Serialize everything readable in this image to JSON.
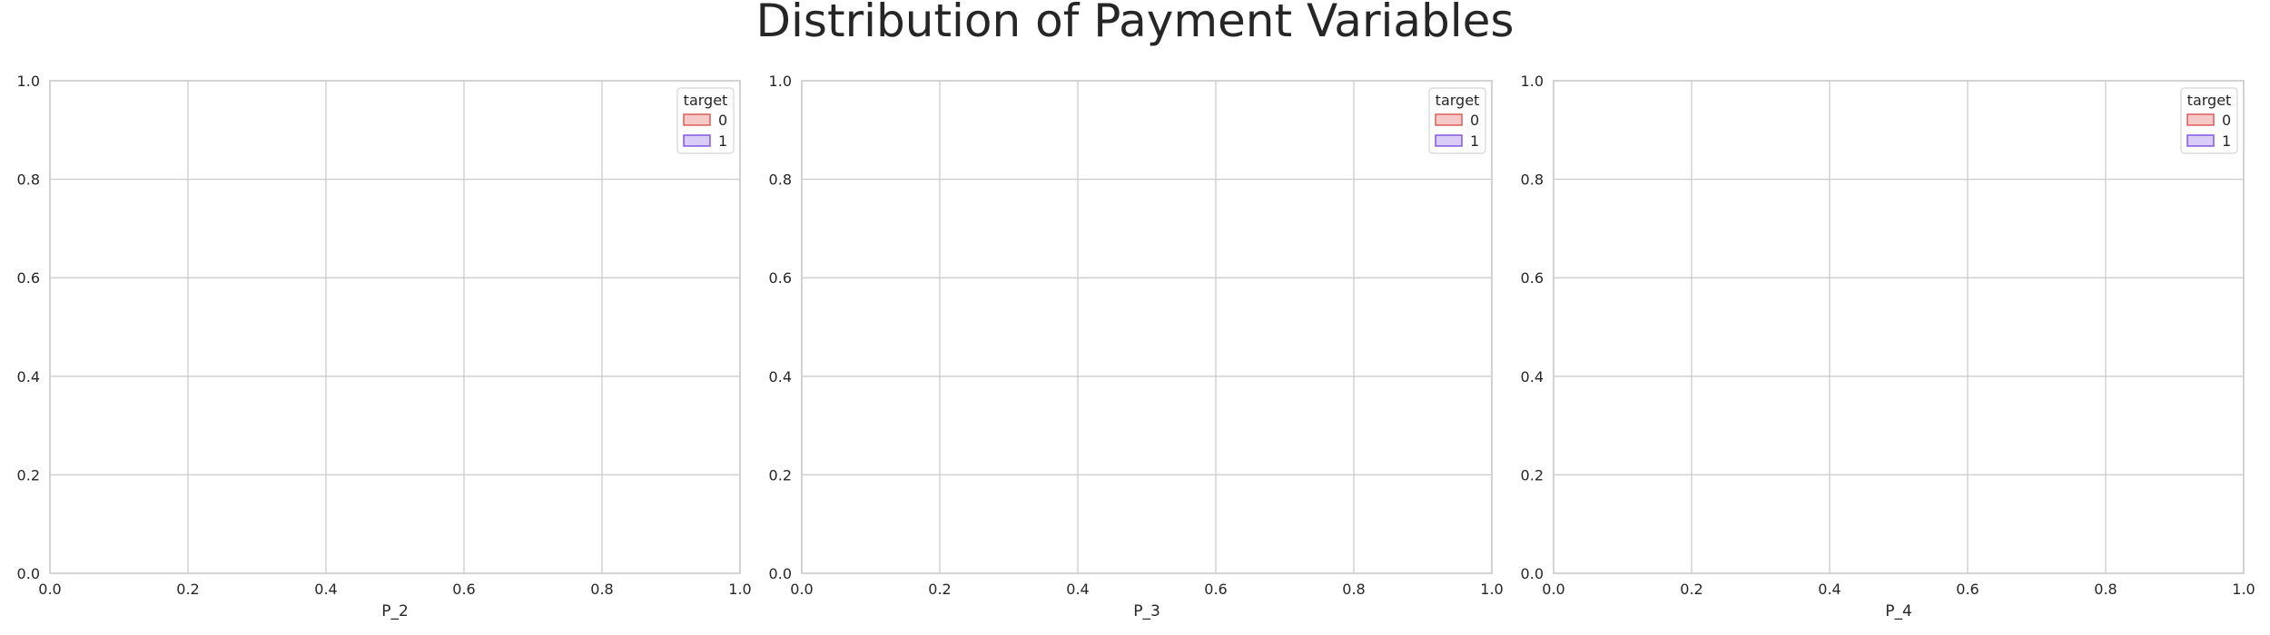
{
  "figure": {
    "title": "Distribution of Payment Variables"
  },
  "colors": {
    "grid": "#cccccc",
    "spine": "#cccccc",
    "class_0_fill": "#f6c9c9",
    "class_0_edge": "#d9534f",
    "class_1_fill": "#d9ccf6",
    "class_1_edge": "#7b4fe0"
  },
  "chart_data": [
    {
      "type": "area",
      "title": "",
      "xlabel": "P_2",
      "ylabel": "",
      "xlim": [
        0.0,
        1.0
      ],
      "ylim": [
        0.0,
        1.0
      ],
      "xticks": [
        "0.0",
        "0.2",
        "0.4",
        "0.6",
        "0.8",
        "1.0"
      ],
      "yticks": [
        "0.0",
        "0.2",
        "0.4",
        "0.6",
        "0.8",
        "1.0"
      ],
      "grid": true,
      "legend": {
        "title": "target",
        "placement": "top-right",
        "entries": [
          "0",
          "1"
        ]
      },
      "series": []
    },
    {
      "type": "area",
      "title": "",
      "xlabel": "P_3",
      "ylabel": "",
      "xlim": [
        0.0,
        1.0
      ],
      "ylim": [
        0.0,
        1.0
      ],
      "xticks": [
        "0.0",
        "0.2",
        "0.4",
        "0.6",
        "0.8",
        "1.0"
      ],
      "yticks": [
        "0.0",
        "0.2",
        "0.4",
        "0.6",
        "0.8",
        "1.0"
      ],
      "grid": true,
      "legend": {
        "title": "target",
        "placement": "top-right",
        "entries": [
          "0",
          "1"
        ]
      },
      "series": []
    },
    {
      "type": "area",
      "title": "",
      "xlabel": "P_4",
      "ylabel": "",
      "xlim": [
        0.0,
        1.0
      ],
      "ylim": [
        0.0,
        1.0
      ],
      "xticks": [
        "0.0",
        "0.2",
        "0.4",
        "0.6",
        "0.8",
        "1.0"
      ],
      "yticks": [
        "0.0",
        "0.2",
        "0.4",
        "0.6",
        "0.8",
        "1.0"
      ],
      "grid": true,
      "legend": {
        "title": "target",
        "placement": "top-right",
        "entries": [
          "0",
          "1"
        ]
      },
      "series": []
    }
  ]
}
